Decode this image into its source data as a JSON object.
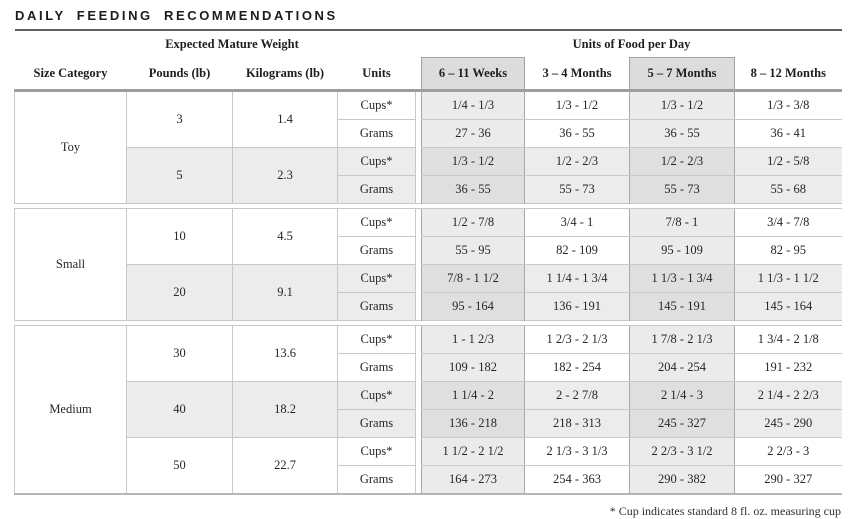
{
  "title": "DAILY FEEDING RECOMMENDATIONS",
  "footnote": "* Cup indicates standard 8 fl. oz. measuring cup",
  "colors": {
    "highlight_header_bg": "#dcdcdc",
    "highlight_column_light": "#ebebeb",
    "highlight_column_dark": "#dfdfdf",
    "shaded_band_bg": "#ececec",
    "rule_dark": "#606060",
    "rule_gray": "#9e9e9e"
  },
  "table": {
    "group_headers": {
      "weight": "Expected Mature Weight",
      "food": "Units of Food per Day"
    },
    "columns": [
      "Size Category",
      "Pounds (lb)",
      "Kilograms (lb)",
      "Units",
      "6 – 11 Weeks",
      "3 – 4 Months",
      "5 – 7 Months",
      "8 – 12 Months"
    ],
    "highlighted_age_columns": [
      "6 – 11 Weeks",
      "5 – 7 Months"
    ],
    "units_labels": {
      "cups": "Cups*",
      "grams": "Grams"
    },
    "sections": [
      {
        "size_category": "Toy",
        "weights": [
          {
            "pounds": "3",
            "kilograms": "1.4",
            "shaded": false,
            "cups": [
              "1/4 - 1/3",
              "1/3 - 1/2",
              "1/3 - 1/2",
              "1/3 - 3/8"
            ],
            "grams": [
              "27 - 36",
              "36 - 55",
              "36 - 55",
              "36 - 41"
            ]
          },
          {
            "pounds": "5",
            "kilograms": "2.3",
            "shaded": true,
            "cups": [
              "1/3 - 1/2",
              "1/2 - 2/3",
              "1/2 - 2/3",
              "1/2 - 5/8"
            ],
            "grams": [
              "36 - 55",
              "55 - 73",
              "55 - 73",
              "55 - 68"
            ]
          }
        ]
      },
      {
        "size_category": "Small",
        "weights": [
          {
            "pounds": "10",
            "kilograms": "4.5",
            "shaded": false,
            "cups": [
              "1/2 - 7/8",
              "3/4 - 1",
              "7/8 - 1",
              "3/4 - 7/8"
            ],
            "grams": [
              "55 - 95",
              "82 - 109",
              "95 - 109",
              "82 - 95"
            ]
          },
          {
            "pounds": "20",
            "kilograms": "9.1",
            "shaded": true,
            "cups": [
              "7/8 - 1 1/2",
              "1 1/4 - 1 3/4",
              "1 1/3 - 1 3/4",
              "1 1/3 - 1 1/2"
            ],
            "grams": [
              "95 - 164",
              "136 - 191",
              "145 - 191",
              "145 - 164"
            ]
          }
        ]
      },
      {
        "size_category": "Medium",
        "weights": [
          {
            "pounds": "30",
            "kilograms": "13.6",
            "shaded": false,
            "cups": [
              "1 - 1 2/3",
              "1 2/3 - 2 1/3",
              "1 7/8 - 2 1/3",
              "1 3/4 - 2 1/8"
            ],
            "grams": [
              "109 - 182",
              "182 - 254",
              "204 - 254",
              "191 - 232"
            ]
          },
          {
            "pounds": "40",
            "kilograms": "18.2",
            "shaded": true,
            "cups": [
              "1 1/4 - 2",
              "2 - 2 7/8",
              "2 1/4 - 3",
              "2 1/4 - 2 2/3"
            ],
            "grams": [
              "136 - 218",
              "218 - 313",
              "245 - 327",
              "245 - 290"
            ]
          },
          {
            "pounds": "50",
            "kilograms": "22.7",
            "shaded": false,
            "cups": [
              "1 1/2 - 2 1/2",
              "2 1/3 - 3 1/3",
              "2 2/3 - 3 1/2",
              "2 2/3 - 3"
            ],
            "grams": [
              "164 - 273",
              "254 - 363",
              "290 - 382",
              "290 - 327"
            ]
          }
        ]
      }
    ]
  }
}
